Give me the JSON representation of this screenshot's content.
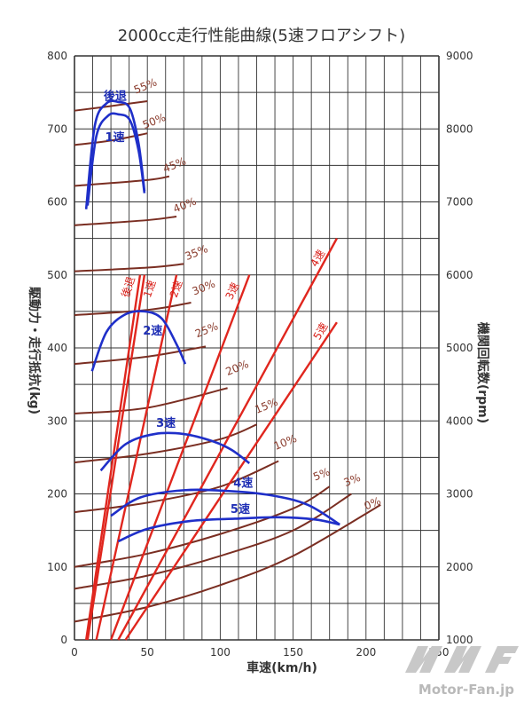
{
  "chart_data": {
    "type": "line",
    "title": "2000cc走行性能曲線(5速フロアシフト)",
    "xlabel": "車速(km/h)",
    "ylabel_left": "駆動力・走行抵抗(kg)",
    "ylabel_right": "機関回転数(rpm)",
    "xlim": [
      0,
      250
    ],
    "ylim_left": [
      0,
      800
    ],
    "ylim_right": [
      1000,
      9000
    ],
    "x_ticks": [
      0,
      50,
      100,
      150,
      200,
      250
    ],
    "y_left_ticks": [
      0,
      100,
      200,
      300,
      400,
      500,
      600,
      700,
      800
    ],
    "y_right_ticks": [
      1000,
      2000,
      3000,
      4000,
      5000,
      6000,
      7000,
      8000,
      9000
    ],
    "grid": true,
    "colors": {
      "resistance": "#7a2e22",
      "engine_speed": "#e0261e",
      "driving_force": "#1f2fc9",
      "grid": "#333333"
    },
    "resistance_curves": [
      {
        "name": "55%",
        "points": [
          [
            0,
            725
          ],
          [
            20,
            730
          ],
          [
            50,
            738
          ]
        ]
      },
      {
        "name": "50%",
        "points": [
          [
            0,
            678
          ],
          [
            25,
            684
          ],
          [
            50,
            694
          ]
        ]
      },
      {
        "name": "45%",
        "points": [
          [
            0,
            622
          ],
          [
            50,
            630
          ],
          [
            65,
            635
          ]
        ]
      },
      {
        "name": "40%",
        "points": [
          [
            0,
            568
          ],
          [
            50,
            575
          ],
          [
            70,
            580
          ]
        ]
      },
      {
        "name": "35%",
        "points": [
          [
            0,
            505
          ],
          [
            50,
            510
          ],
          [
            75,
            515
          ]
        ]
      },
      {
        "name": "30%",
        "points": [
          [
            0,
            445
          ],
          [
            50,
            452
          ],
          [
            80,
            462
          ]
        ]
      },
      {
        "name": "25%",
        "points": [
          [
            0,
            378
          ],
          [
            50,
            388
          ],
          [
            90,
            402
          ]
        ]
      },
      {
        "name": "20%",
        "points": [
          [
            0,
            310
          ],
          [
            50,
            318
          ],
          [
            105,
            345
          ]
        ]
      },
      {
        "name": "15%",
        "points": [
          [
            0,
            243
          ],
          [
            50,
            255
          ],
          [
            100,
            275
          ],
          [
            125,
            295
          ]
        ]
      },
      {
        "name": "10%",
        "points": [
          [
            0,
            175
          ],
          [
            50,
            188
          ],
          [
            100,
            210
          ],
          [
            140,
            245
          ]
        ]
      },
      {
        "name": "5%",
        "points": [
          [
            0,
            100
          ],
          [
            50,
            118
          ],
          [
            100,
            145
          ],
          [
            150,
            180
          ],
          [
            175,
            210
          ]
        ]
      },
      {
        "name": "3%",
        "points": [
          [
            0,
            70
          ],
          [
            50,
            88
          ],
          [
            100,
            115
          ],
          [
            150,
            150
          ],
          [
            190,
            200
          ]
        ]
      },
      {
        "name": "0%",
        "points": [
          [
            0,
            25
          ],
          [
            50,
            45
          ],
          [
            100,
            75
          ],
          [
            150,
            115
          ],
          [
            210,
            185
          ]
        ]
      }
    ],
    "engine_speed_lines": [
      {
        "name": "後退",
        "points": [
          [
            8,
            0
          ],
          [
            45,
            500
          ]
        ]
      },
      {
        "name": "1速",
        "points": [
          [
            9,
            0
          ],
          [
            48,
            500
          ]
        ]
      },
      {
        "name": "2速",
        "points": [
          [
            15,
            0
          ],
          [
            70,
            500
          ]
        ]
      },
      {
        "name": "3速",
        "points": [
          [
            25,
            0
          ],
          [
            120,
            500
          ]
        ]
      },
      {
        "name": "4速",
        "points": [
          [
            30,
            0
          ],
          [
            180,
            550
          ]
        ]
      },
      {
        "name": "5速",
        "points": [
          [
            35,
            0
          ],
          [
            180,
            435
          ]
        ]
      }
    ],
    "driving_force_curves": [
      {
        "name": "後退",
        "points": [
          [
            8,
            590
          ],
          [
            14,
            705
          ],
          [
            22,
            735
          ],
          [
            30,
            737
          ],
          [
            38,
            728
          ],
          [
            44,
            680
          ],
          [
            48,
            615
          ]
        ]
      },
      {
        "name": "1速",
        "points": [
          [
            9,
            595
          ],
          [
            15,
            690
          ],
          [
            23,
            718
          ],
          [
            30,
            720
          ],
          [
            38,
            712
          ],
          [
            44,
            670
          ],
          [
            48,
            612
          ]
        ]
      },
      {
        "name": "2速",
        "points": [
          [
            12,
            368
          ],
          [
            22,
            422
          ],
          [
            35,
            446
          ],
          [
            48,
            450
          ],
          [
            60,
            440
          ],
          [
            70,
            405
          ],
          [
            76,
            378
          ]
        ]
      },
      {
        "name": "3速",
        "points": [
          [
            18,
            232
          ],
          [
            35,
            268
          ],
          [
            55,
            282
          ],
          [
            75,
            282
          ],
          [
            95,
            272
          ],
          [
            108,
            260
          ],
          [
            120,
            242
          ]
        ]
      },
      {
        "name": "4速",
        "points": [
          [
            25,
            170
          ],
          [
            45,
            195
          ],
          [
            75,
            205
          ],
          [
            105,
            204
          ],
          [
            135,
            198
          ],
          [
            160,
            185
          ],
          [
            182,
            158
          ]
        ]
      },
      {
        "name": "5速",
        "points": [
          [
            30,
            135
          ],
          [
            50,
            152
          ],
          [
            80,
            163
          ],
          [
            110,
            166
          ],
          [
            140,
            168
          ],
          [
            165,
            165
          ],
          [
            182,
            158
          ]
        ]
      }
    ],
    "labels": {
      "resistance": [
        {
          "text": "55%",
          "x": 42,
          "y": 748
        },
        {
          "text": "50%",
          "x": 48,
          "y": 700
        },
        {
          "text": "45%",
          "x": 62,
          "y": 640
        },
        {
          "text": "40%",
          "x": 69,
          "y": 585
        },
        {
          "text": "35%",
          "x": 77,
          "y": 520
        },
        {
          "text": "30%",
          "x": 82,
          "y": 472
        },
        {
          "text": "25%",
          "x": 84,
          "y": 414
        },
        {
          "text": "20%",
          "x": 105,
          "y": 362
        },
        {
          "text": "15%",
          "x": 125,
          "y": 310
        },
        {
          "text": "10%",
          "x": 138,
          "y": 260
        },
        {
          "text": "5%",
          "x": 165,
          "y": 218
        },
        {
          "text": "3%",
          "x": 186,
          "y": 210
        },
        {
          "text": "0%",
          "x": 200,
          "y": 178
        }
      ],
      "engine_speed": [
        {
          "text": "後退",
          "x": 37,
          "y": 468,
          "rot": -72
        },
        {
          "text": "1速",
          "x": 52,
          "y": 468,
          "rot": -72
        },
        {
          "text": "2速",
          "x": 70,
          "y": 468,
          "rot": -70
        },
        {
          "text": "3速",
          "x": 108,
          "y": 465,
          "rot": -65
        },
        {
          "text": "4速",
          "x": 166,
          "y": 510,
          "rot": -60
        },
        {
          "text": "5速",
          "x": 168,
          "y": 410,
          "rot": -60
        }
      ],
      "driving_force": [
        {
          "text": "後退",
          "x": 20,
          "y": 740
        },
        {
          "text": "1速",
          "x": 21,
          "y": 683
        },
        {
          "text": "2速",
          "x": 47,
          "y": 418
        },
        {
          "text": "3速",
          "x": 56,
          "y": 292
        },
        {
          "text": "4速",
          "x": 109,
          "y": 210
        },
        {
          "text": "5速",
          "x": 107,
          "y": 174
        }
      ]
    }
  },
  "watermark": {
    "text": "Motor-Fan.jp",
    "logo_text": "MF"
  }
}
